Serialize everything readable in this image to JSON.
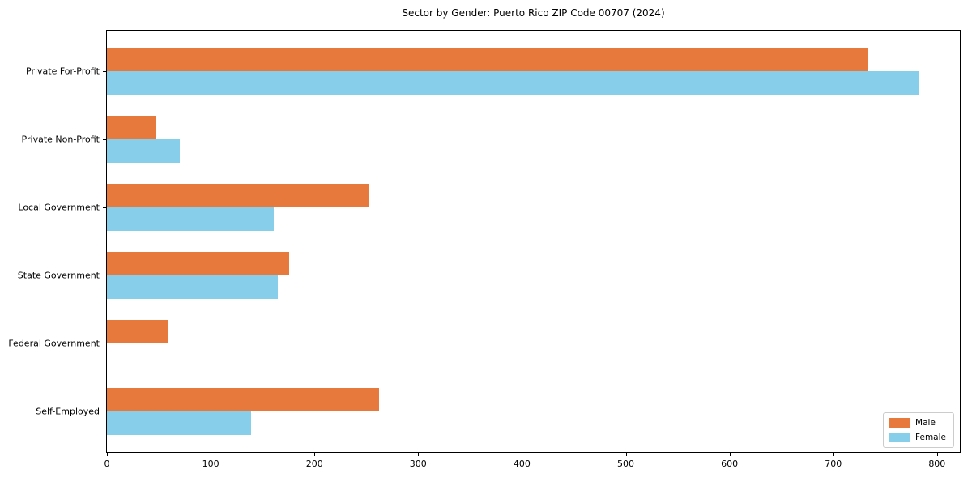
{
  "chart_data": {
    "type": "bar",
    "orientation": "horizontal",
    "title": "Sector by Gender: Puerto Rico ZIP Code 00707 (2024)",
    "categories": [
      "Private For-Profit",
      "Private Non-Profit",
      "Local Government",
      "State Government",
      "Federal Government",
      "Self-Employed"
    ],
    "series": [
      {
        "name": "Male",
        "color": "#e8793d",
        "values": [
          733,
          47,
          252,
          176,
          59,
          262
        ]
      },
      {
        "name": "Female",
        "color": "#87ceeb",
        "values": [
          783,
          70,
          161,
          165,
          0,
          139
        ]
      }
    ],
    "xlabel": "",
    "ylabel": "",
    "xlim": [
      0,
      822
    ],
    "xticks": [
      0,
      100,
      200,
      300,
      400,
      500,
      600,
      700,
      800
    ],
    "legend_position": "lower right",
    "grid": false,
    "bar_height_fraction": 0.35
  }
}
